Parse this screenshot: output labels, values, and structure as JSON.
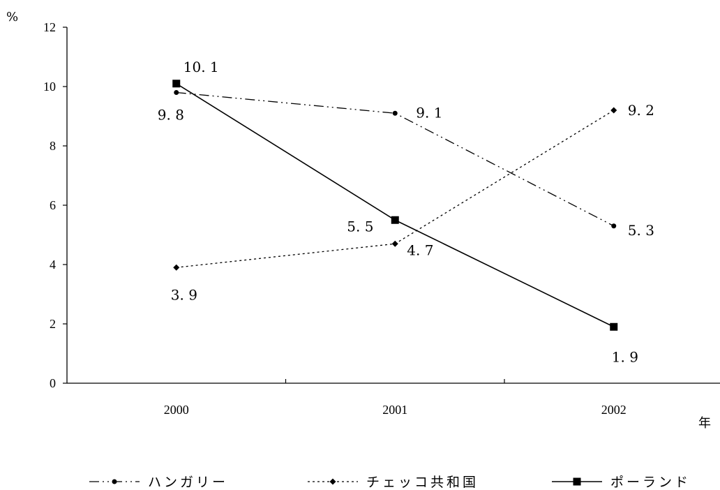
{
  "chart_data": {
    "type": "line",
    "categories": [
      "2000",
      "2001",
      "2002"
    ],
    "ylim": [
      0,
      12
    ],
    "yticks": [
      "0",
      "2",
      "4",
      "6",
      "8",
      "10",
      "12"
    ],
    "ylabel": "%",
    "xlabel": "年",
    "legend_position": "bottom",
    "grid": false,
    "series": [
      {
        "name": "ハンガリー",
        "values": [
          9.8,
          9.1,
          5.3
        ],
        "labels": [
          "9. 8",
          "9. 1",
          "5. 3"
        ],
        "line_style": "dash-dot-dot",
        "marker": "circle",
        "color": "#000000"
      },
      {
        "name": "チェッコ共和国",
        "values": [
          3.9,
          4.7,
          9.2
        ],
        "labels": [
          "3. 9",
          "4. 7",
          "9. 2"
        ],
        "line_style": "dotted",
        "marker": "diamond",
        "color": "#000000"
      },
      {
        "name": "ポーランド",
        "values": [
          10.1,
          5.5,
          1.9
        ],
        "labels": [
          "10. 1",
          "5. 5",
          "1. 9"
        ],
        "line_style": "solid",
        "marker": "square",
        "color": "#000000"
      }
    ]
  }
}
